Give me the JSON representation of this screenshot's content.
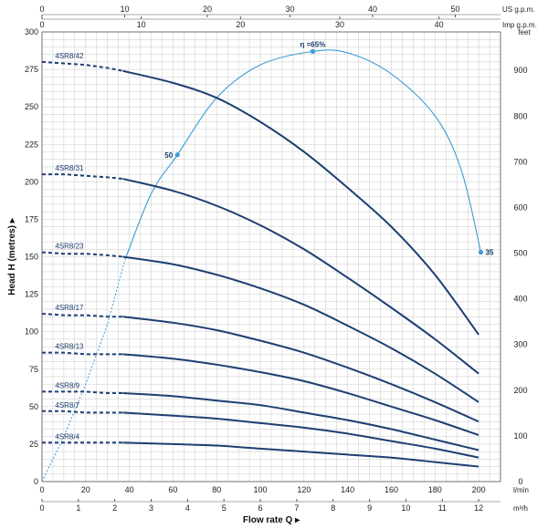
{
  "chart_data": {
    "type": "line",
    "title": "",
    "xlabel": "Flow rate Q",
    "ylabel": "Head H (metres)",
    "y2label": "feet",
    "xlim": [
      0,
      210
    ],
    "ylim": [
      0,
      300
    ],
    "grid": true,
    "x_ticks": [
      0,
      20,
      40,
      60,
      80,
      100,
      120,
      140,
      160,
      180,
      200
    ],
    "x_unit": "l/min",
    "y_ticks": [
      0,
      25,
      50,
      75,
      100,
      125,
      150,
      175,
      200,
      225,
      250,
      275,
      300
    ],
    "y2_ticks": [
      0,
      100,
      200,
      300,
      400,
      500,
      600,
      700,
      800,
      900
    ],
    "secondary_axes": {
      "m3h": {
        "unit": "m³/h",
        "ticks": [
          0,
          1,
          2,
          3,
          4,
          5,
          6,
          7,
          8,
          9,
          10,
          11,
          12
        ]
      },
      "usgpm": {
        "unit": "US g.p.m.",
        "ticks": [
          0,
          10,
          20,
          30,
          40,
          50
        ]
      },
      "impgpm": {
        "unit": "Imp g.p.m.",
        "ticks": [
          0,
          10,
          20,
          30,
          40
        ]
      }
    },
    "series": [
      {
        "name": "4SR8/42",
        "dashed_x": [
          0,
          10,
          20,
          30,
          37
        ],
        "dashed_y": [
          280,
          279,
          278,
          276,
          274
        ],
        "x": [
          37,
          60,
          80,
          100,
          120,
          140,
          160,
          180,
          200
        ],
        "y": [
          274,
          266,
          256,
          240,
          220,
          196,
          170,
          138,
          98
        ]
      },
      {
        "name": "4SR8/31",
        "dashed_x": [
          0,
          10,
          20,
          30,
          37
        ],
        "dashed_y": [
          205,
          205,
          204,
          203,
          202
        ],
        "x": [
          37,
          60,
          80,
          100,
          120,
          140,
          160,
          180,
          200
        ],
        "y": [
          202,
          194,
          184,
          171,
          155,
          136,
          116,
          95,
          72
        ]
      },
      {
        "name": "4SR8/23",
        "dashed_x": [
          0,
          10,
          20,
          30,
          37
        ],
        "dashed_y": [
          153,
          152,
          152,
          151,
          150
        ],
        "x": [
          37,
          60,
          80,
          100,
          120,
          140,
          160,
          180,
          200
        ],
        "y": [
          150,
          145,
          138,
          129,
          118,
          104,
          89,
          72,
          53
        ]
      },
      {
        "name": "4SR8/17",
        "dashed_x": [
          0,
          10,
          20,
          30,
          37
        ],
        "dashed_y": [
          112,
          111,
          111,
          110,
          110
        ],
        "x": [
          37,
          60,
          80,
          100,
          120,
          140,
          160,
          180,
          200
        ],
        "y": [
          110,
          106,
          101,
          94,
          86,
          76,
          65,
          53,
          40
        ]
      },
      {
        "name": "4SR8/13",
        "dashed_x": [
          0,
          10,
          20,
          30,
          37
        ],
        "dashed_y": [
          86,
          86,
          85,
          85,
          85
        ],
        "x": [
          37,
          60,
          80,
          100,
          120,
          140,
          160,
          180,
          200
        ],
        "y": [
          85,
          82,
          78,
          73,
          67,
          59,
          50,
          41,
          31
        ]
      },
      {
        "name": "4SR8/9",
        "dashed_x": [
          0,
          10,
          20,
          30,
          37
        ],
        "dashed_y": [
          60,
          60,
          60,
          59,
          59
        ],
        "x": [
          37,
          60,
          80,
          100,
          120,
          140,
          160,
          180,
          200
        ],
        "y": [
          59,
          57,
          54,
          51,
          46,
          41,
          35,
          28,
          21
        ]
      },
      {
        "name": "4SR8/7",
        "dashed_x": [
          0,
          10,
          20,
          30,
          37
        ],
        "dashed_y": [
          47,
          47,
          46,
          46,
          46
        ],
        "x": [
          37,
          60,
          80,
          100,
          120,
          140,
          160,
          180,
          200
        ],
        "y": [
          46,
          44,
          42,
          39,
          36,
          32,
          27,
          22,
          16
        ]
      },
      {
        "name": "4SR8/4",
        "dashed_x": [
          0,
          10,
          20,
          30,
          37
        ],
        "dashed_y": [
          26,
          26,
          26,
          26,
          26
        ],
        "x": [
          37,
          60,
          80,
          100,
          120,
          140,
          160,
          180,
          200
        ],
        "y": [
          26,
          25,
          24,
          22,
          20,
          18,
          16,
          13,
          10
        ]
      }
    ],
    "efficiency": {
      "dashed_x": [
        0,
        10,
        20,
        30,
        38
      ],
      "dashed_y": [
        0,
        30,
        65,
        105,
        148
      ],
      "x": [
        38,
        50,
        62,
        80,
        100,
        124,
        140,
        160,
        180,
        192,
        201
      ],
      "y": [
        148,
        192,
        218,
        256,
        278,
        287,
        286,
        272,
        244,
        208,
        153
      ],
      "points": [
        {
          "x": 62,
          "y": 218,
          "label": "50"
        },
        {
          "x": 124,
          "y": 287,
          "label": "η =65%"
        },
        {
          "x": 201,
          "y": 153,
          "label": "35"
        }
      ]
    }
  },
  "colors": {
    "curve": "#1d3f72",
    "efficiency": "#3d9bd6",
    "grid": "#c8c8c8",
    "text": "#222222"
  }
}
